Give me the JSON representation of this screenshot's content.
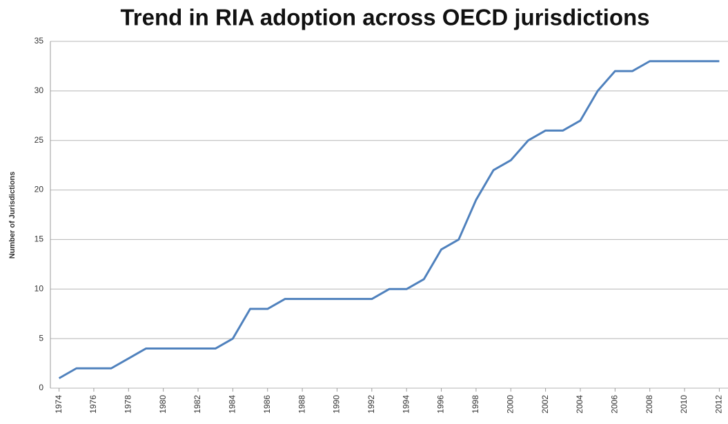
{
  "chart_data": {
    "type": "line",
    "title": "Trend in RIA adoption across OECD jurisdictions",
    "y_label": "Number of Jurisdictions",
    "x": [
      1974,
      1975,
      1976,
      1977,
      1978,
      1979,
      1980,
      1981,
      1982,
      1983,
      1984,
      1985,
      1986,
      1987,
      1988,
      1989,
      1990,
      1991,
      1992,
      1993,
      1994,
      1995,
      1996,
      1997,
      1998,
      1999,
      2000,
      2001,
      2002,
      2003,
      2004,
      2005,
      2006,
      2007,
      2008,
      2009,
      2010,
      2011,
      2012
    ],
    "series": [
      {
        "name": "Number of Jurisdictions",
        "color": "#4f81bd",
        "values": [
          1,
          2,
          2,
          2,
          3,
          4,
          4,
          4,
          4,
          4,
          5,
          8,
          8,
          9,
          9,
          9,
          9,
          9,
          9,
          10,
          10,
          11,
          14,
          15,
          19,
          22,
          23,
          25,
          26,
          26,
          27,
          30,
          32,
          32,
          33,
          33,
          33,
          33,
          33
        ]
      }
    ],
    "xlim": [
      1973.5,
      2012.5
    ],
    "xticks": [
      1974,
      1976,
      1978,
      1980,
      1982,
      1984,
      1986,
      1988,
      1990,
      1992,
      1994,
      1996,
      1998,
      2000,
      2002,
      2004,
      2006,
      2008,
      2010,
      2012
    ],
    "ylim": [
      0,
      35
    ],
    "yticks": [
      0,
      5,
      10,
      15,
      20,
      25,
      30,
      35
    ],
    "grid": true
  }
}
